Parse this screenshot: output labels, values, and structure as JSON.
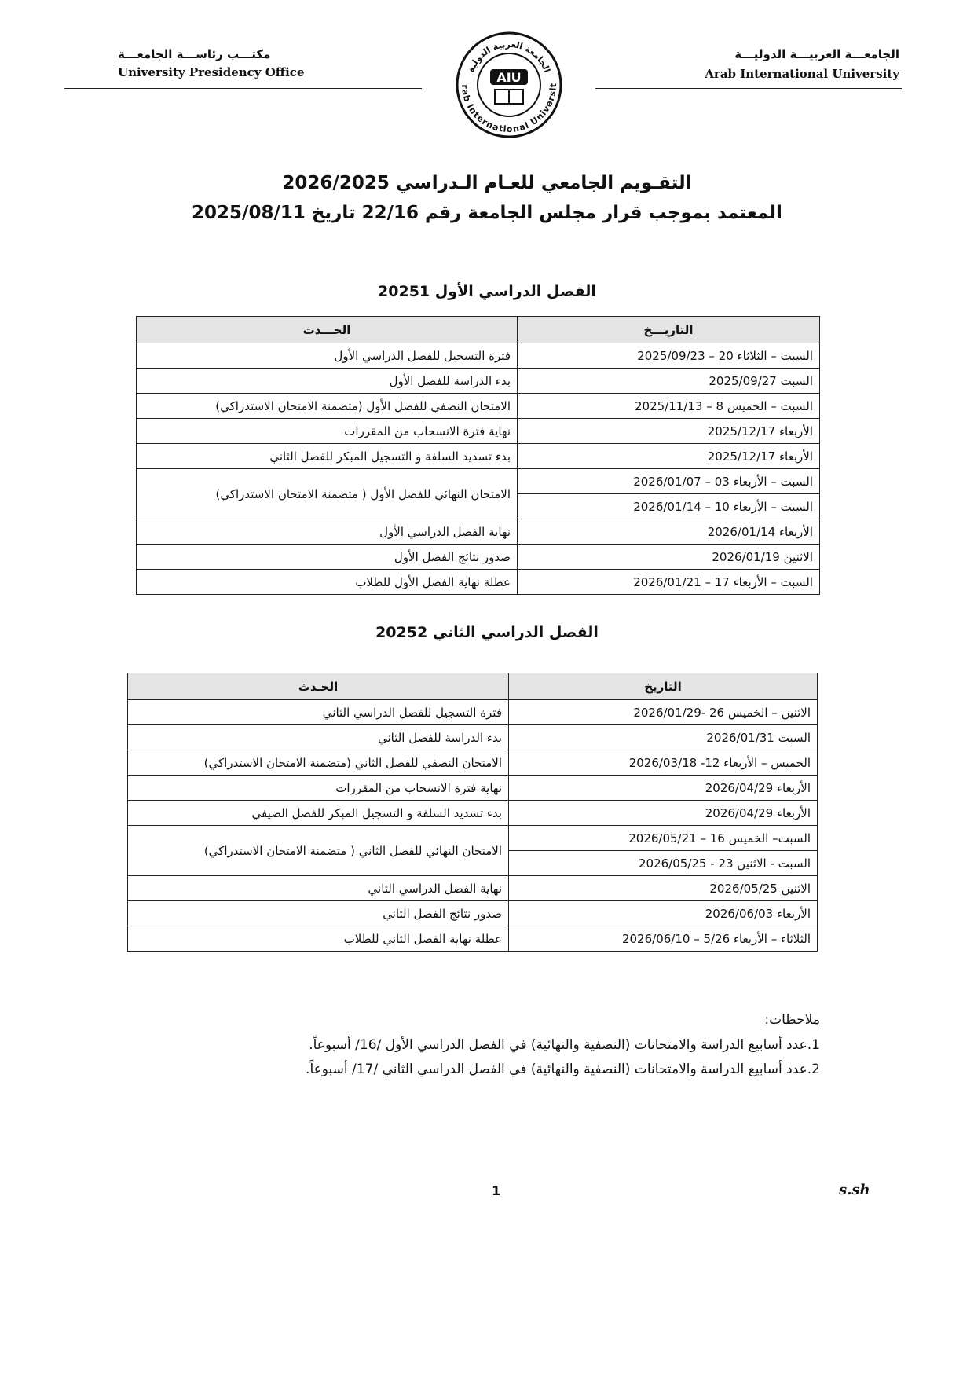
{
  "header": {
    "left_ar": "مكتـــب رئاســـة الجامعـــة",
    "left_en": "University Presidency Office",
    "right_ar": "الجامعـــة العربيـــة الدوليـــة",
    "right_en": "Arab International University",
    "logo": {
      "abbr": "AIU",
      "arc_ar": "الجامعة العربية الدولية",
      "arc_en": "Arab International University"
    }
  },
  "title": {
    "line1": "التقـويم الجامعي للعـام الـدراسي 2026/2025",
    "line2": "المعتمد بموجب قرار مجلس الجامعة رقم 22/16 تاريخ 2025/08/11"
  },
  "semesters": [
    {
      "title": "الفصل الدراسي الأول 20251",
      "headers": {
        "date": "التاريـــخ",
        "event": "الحـــدث"
      },
      "rows": [
        {
          "dates": [
            "السبت – الثلاثاء 20 – 2025/09/23"
          ],
          "event": "فترة التسجيل للفصل الدراسي الأول"
        },
        {
          "dates": [
            "السبت 2025/09/27"
          ],
          "event": "بدء الدراسة للفصل الأول"
        },
        {
          "dates": [
            "السبت – الخميس 8 – 2025/11/13"
          ],
          "event": "الامتحان النصفي للفصل الأول (متضمنة الامتحان الاستدراكي)"
        },
        {
          "dates": [
            "الأربعاء 2025/12/17"
          ],
          "event": "نهاية فترة الانسحاب من المقررات"
        },
        {
          "dates": [
            "الأربعاء 2025/12/17"
          ],
          "event": "بدء تسديد السلفة و التسجيل المبكر للفصل الثاني"
        },
        {
          "dates": [
            "السبت – الأربعاء 03 – 2026/01/07",
            "السبت – الأربعاء 10 – 2026/01/14"
          ],
          "event": "الامتحان النهائي للفصل الأول ( متضمنة الامتحان الاستدراكي)"
        },
        {
          "dates": [
            "الأربعاء 2026/01/14"
          ],
          "event": "نهاية الفصل الدراسي الأول"
        },
        {
          "dates": [
            "الاثنين 2026/01/19"
          ],
          "event": "صدور نتائج الفصل الأول"
        },
        {
          "dates": [
            "السبت – الأربعاء 17 – 2026/01/21"
          ],
          "event": "عطلة نهاية الفصل الأول للطلاب"
        }
      ]
    },
    {
      "title": "الفصل الدراسي الثاني  20252",
      "headers": {
        "date": "التاريخ",
        "event": "الحـدث"
      },
      "rows": [
        {
          "dates": [
            "الاثنين – الخميس 26 -2026/01/29"
          ],
          "event": "فترة التسجيل للفصل الدراسي الثاني"
        },
        {
          "dates": [
            "السبت 2026/01/31"
          ],
          "event": "بدء الدراسة للفصل الثاني"
        },
        {
          "dates": [
            "الخميس – الأربعاء 12- 2026/03/18"
          ],
          "event": "الامتحان النصفي للفصل الثاني (متضمنة الامتحان الاستدراكي)"
        },
        {
          "dates": [
            "الأربعاء 2026/04/29"
          ],
          "event": "نهاية فترة الانسحاب من المقررات"
        },
        {
          "dates": [
            "الأربعاء 2026/04/29"
          ],
          "event": "بدء تسديد السلفة و التسجيل المبكر للفصل الصيفي"
        },
        {
          "dates": [
            "السبت– الخميس 16 – 2026/05/21",
            "السبت - الاثنين 23 - 2026/05/25"
          ],
          "event": "الامتحان النهائي للفصل الثاني ( متضمنة الامتحان الاستدراكي)"
        },
        {
          "dates": [
            "الاثنين 2026/05/25"
          ],
          "event": "نهاية الفصل الدراسي الثاني"
        },
        {
          "dates": [
            "الأربعاء 2026/06/03"
          ],
          "event": "صدور نتائج الفصل الثاني"
        },
        {
          "dates": [
            "الثلاثاء – الأربعاء 5/26 – 2026/06/10"
          ],
          "event": "عطلة نهاية الفصل الثاني للطلاب"
        }
      ]
    }
  ],
  "notes": {
    "title": "ملاحظات:",
    "items": [
      "1.عدد أسابيع الدراسة والامتحانات (النصفية والنهائية) في الفصل الدراسي الأول /16/ أسبوعاً.",
      "2.عدد أسابيع الدراسة والامتحانات (النصفية والنهائية) في الفصل الدراسي الثاني /17/ أسبوعاً."
    ]
  },
  "footer": {
    "page": "1",
    "initials": "s.sh"
  }
}
